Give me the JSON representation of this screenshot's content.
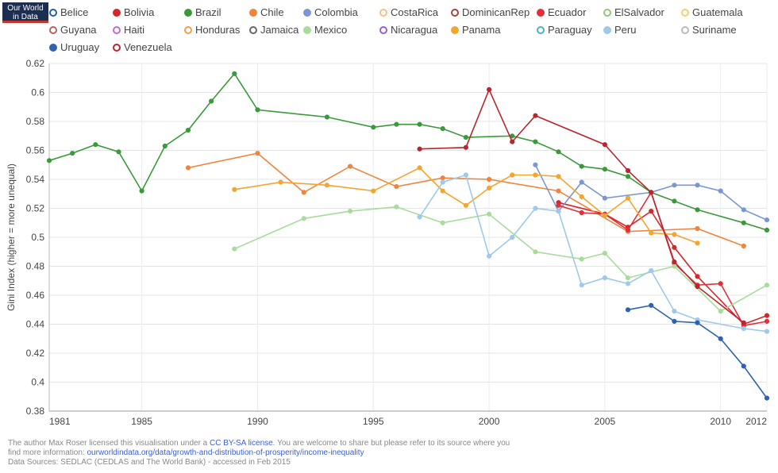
{
  "logo": {
    "line1": "Our World",
    "line2": "in Data"
  },
  "chart_data": {
    "type": "line",
    "title": "",
    "xlabel": "",
    "ylabel": "Gini Index (higher = more unequal)",
    "xlim": [
      1981,
      2012
    ],
    "ylim": [
      0.38,
      0.62
    ],
    "xticks": [
      1981,
      1985,
      1990,
      1995,
      2000,
      2005,
      2010,
      2012
    ],
    "yticks": [
      0.38,
      0.4,
      0.42,
      0.44,
      0.46,
      0.48,
      0.5,
      0.52,
      0.54,
      0.56,
      0.58,
      0.6,
      0.62
    ],
    "series": [
      {
        "name": "Belice",
        "color": "#1f5fa8",
        "filled": false,
        "points": []
      },
      {
        "name": "Bolivia",
        "color": "#d62728",
        "filled": true,
        "points": [
          [
            2003,
            0.524
          ],
          [
            2005,
            0.516
          ],
          [
            2006,
            0.507
          ],
          [
            2007,
            0.518
          ],
          [
            2008,
            0.493
          ],
          [
            2009,
            0.473
          ],
          [
            2011,
            0.44
          ],
          [
            2012,
            0.446
          ]
        ]
      },
      {
        "name": "Brazil",
        "color": "#3a9a3a",
        "filled": true,
        "points": [
          [
            1981,
            0.553
          ],
          [
            1982,
            0.558
          ],
          [
            1983,
            0.564
          ],
          [
            1984,
            0.559
          ],
          [
            1985,
            0.532
          ],
          [
            1986,
            0.563
          ],
          [
            1987,
            0.574
          ],
          [
            1988,
            0.594
          ],
          [
            1989,
            0.613
          ],
          [
            1990,
            0.588
          ],
          [
            1993,
            0.583
          ],
          [
            1995,
            0.576
          ],
          [
            1996,
            0.578
          ],
          [
            1997,
            0.578
          ],
          [
            1998,
            0.575
          ],
          [
            1999,
            0.569
          ],
          [
            2001,
            0.57
          ],
          [
            2002,
            0.566
          ],
          [
            2003,
            0.559
          ],
          [
            2004,
            0.549
          ],
          [
            2005,
            0.547
          ],
          [
            2006,
            0.542
          ],
          [
            2007,
            0.531
          ],
          [
            2008,
            0.525
          ],
          [
            2009,
            0.519
          ],
          [
            2011,
            0.51
          ],
          [
            2012,
            0.505
          ]
        ]
      },
      {
        "name": "Chile",
        "color": "#f0843c",
        "filled": true,
        "points": [
          [
            1987,
            0.548
          ],
          [
            1990,
            0.558
          ],
          [
            1992,
            0.531
          ],
          [
            1994,
            0.549
          ],
          [
            1996,
            0.535
          ],
          [
            1998,
            0.541
          ],
          [
            2000,
            0.54
          ],
          [
            2003,
            0.532
          ],
          [
            2006,
            0.504
          ],
          [
            2009,
            0.506
          ],
          [
            2011,
            0.494
          ]
        ]
      },
      {
        "name": "Colombia",
        "color": "#7b96d4",
        "filled": true,
        "points": [
          [
            2002,
            0.55
          ],
          [
            2003,
            0.518
          ],
          [
            2004,
            0.538
          ],
          [
            2005,
            0.527
          ],
          [
            2007,
            0.531
          ],
          [
            2008,
            0.536
          ],
          [
            2009,
            0.536
          ],
          [
            2010,
            0.532
          ],
          [
            2011,
            0.519
          ],
          [
            2012,
            0.512
          ]
        ]
      },
      {
        "name": "CostaRica",
        "color": "#f6be8a",
        "filled": false,
        "points": []
      },
      {
        "name": "DominicanRep",
        "color": "#a0473a",
        "filled": false,
        "points": []
      },
      {
        "name": "Ecuador",
        "color": "#e0313b",
        "filled": true,
        "points": [
          [
            2003,
            0.522
          ],
          [
            2004,
            0.517
          ],
          [
            2005,
            0.516
          ],
          [
            2006,
            0.505
          ],
          [
            2007,
            0.531
          ],
          [
            2008,
            0.482
          ],
          [
            2009,
            0.467
          ],
          [
            2010,
            0.468
          ],
          [
            2011,
            0.439
          ],
          [
            2012,
            0.442
          ]
        ]
      },
      {
        "name": "ElSalvador",
        "color": "#8fc67a",
        "filled": false,
        "points": []
      },
      {
        "name": "Guatemala",
        "color": "#f2d06c",
        "filled": false,
        "points": []
      },
      {
        "name": "Guyana",
        "color": "#b5635a",
        "filled": false,
        "points": []
      },
      {
        "name": "Haiti",
        "color": "#c06bd1",
        "filled": false,
        "points": []
      },
      {
        "name": "Honduras",
        "color": "#f0a048",
        "filled": false,
        "points": []
      },
      {
        "name": "Jamaica",
        "color": "#666666",
        "filled": false,
        "points": []
      },
      {
        "name": "Mexico",
        "color": "#a8dc9a",
        "filled": true,
        "points": [
          [
            1989,
            0.492
          ],
          [
            1992,
            0.513
          ],
          [
            1994,
            0.518
          ],
          [
            1996,
            0.521
          ],
          [
            1998,
            0.51
          ],
          [
            2000,
            0.516
          ],
          [
            2002,
            0.49
          ],
          [
            2004,
            0.485
          ],
          [
            2005,
            0.489
          ],
          [
            2006,
            0.472
          ],
          [
            2008,
            0.48
          ],
          [
            2010,
            0.449
          ],
          [
            2012,
            0.467
          ]
        ]
      },
      {
        "name": "Nicaragua",
        "color": "#9a5fc6",
        "filled": false,
        "points": []
      },
      {
        "name": "Panama",
        "color": "#f2a530",
        "filled": true,
        "points": [
          [
            1989,
            0.533
          ],
          [
            1991,
            0.538
          ],
          [
            1993,
            0.536
          ],
          [
            1995,
            0.532
          ],
          [
            1997,
            0.548
          ],
          [
            1998,
            0.532
          ],
          [
            1999,
            0.522
          ],
          [
            2000,
            0.534
          ],
          [
            2001,
            0.543
          ],
          [
            2002,
            0.543
          ],
          [
            2003,
            0.542
          ],
          [
            2004,
            0.528
          ],
          [
            2005,
            0.515
          ],
          [
            2006,
            0.527
          ],
          [
            2007,
            0.503
          ],
          [
            2008,
            0.502
          ],
          [
            2009,
            0.496
          ]
        ]
      },
      {
        "name": "Paraguay",
        "color": "#42b4c8",
        "filled": false,
        "points": []
      },
      {
        "name": "Peru",
        "color": "#9ec9e8",
        "filled": true,
        "points": [
          [
            1997,
            0.514
          ],
          [
            1998,
            0.538
          ],
          [
            1999,
            0.543
          ],
          [
            2000,
            0.487
          ],
          [
            2001,
            0.5
          ],
          [
            2002,
            0.52
          ],
          [
            2003,
            0.518
          ],
          [
            2004,
            0.467
          ],
          [
            2005,
            0.472
          ],
          [
            2006,
            0.468
          ],
          [
            2007,
            0.477
          ],
          [
            2008,
            0.449
          ],
          [
            2009,
            0.443
          ],
          [
            2011,
            0.437
          ],
          [
            2012,
            0.435
          ]
        ]
      },
      {
        "name": "Suriname",
        "color": "#bbbbbb",
        "filled": false,
        "points": []
      },
      {
        "name": "Uruguay",
        "color": "#2e62b0",
        "filled": true,
        "points": [
          [
            2006,
            0.45
          ],
          [
            2007,
            0.453
          ],
          [
            2008,
            0.442
          ],
          [
            2009,
            0.441
          ],
          [
            2010,
            0.43
          ],
          [
            2011,
            0.411
          ],
          [
            2012,
            0.389
          ]
        ]
      },
      {
        "name": "Venezuela",
        "color": "#b8262f",
        "filled": false,
        "points": [
          [
            1997,
            0.561
          ],
          [
            1999,
            0.562
          ],
          [
            2000,
            0.602
          ],
          [
            2001,
            0.566
          ],
          [
            2002,
            0.584
          ],
          [
            2005,
            0.564
          ],
          [
            2006,
            0.546
          ],
          [
            2007,
            0.531
          ],
          [
            2008,
            0.483
          ],
          [
            2009,
            0.466
          ],
          [
            2011,
            0.441
          ]
        ]
      }
    ]
  },
  "footer": {
    "line1_a": "The author Max Roser licensed this visualisation under a",
    "line1_link": "CC BY-SA license",
    "line1_b": ". You are welcome to share but please refer to its source where you",
    "line2_a": "find more information:",
    "line2_link": "ourworldindata.org/data/growth-and-distribution-of-prosperity/income-inequality",
    "line3": "Data Sources: SEDLAC (CEDLAS and The World Bank) - accessed in Feb 2015"
  }
}
